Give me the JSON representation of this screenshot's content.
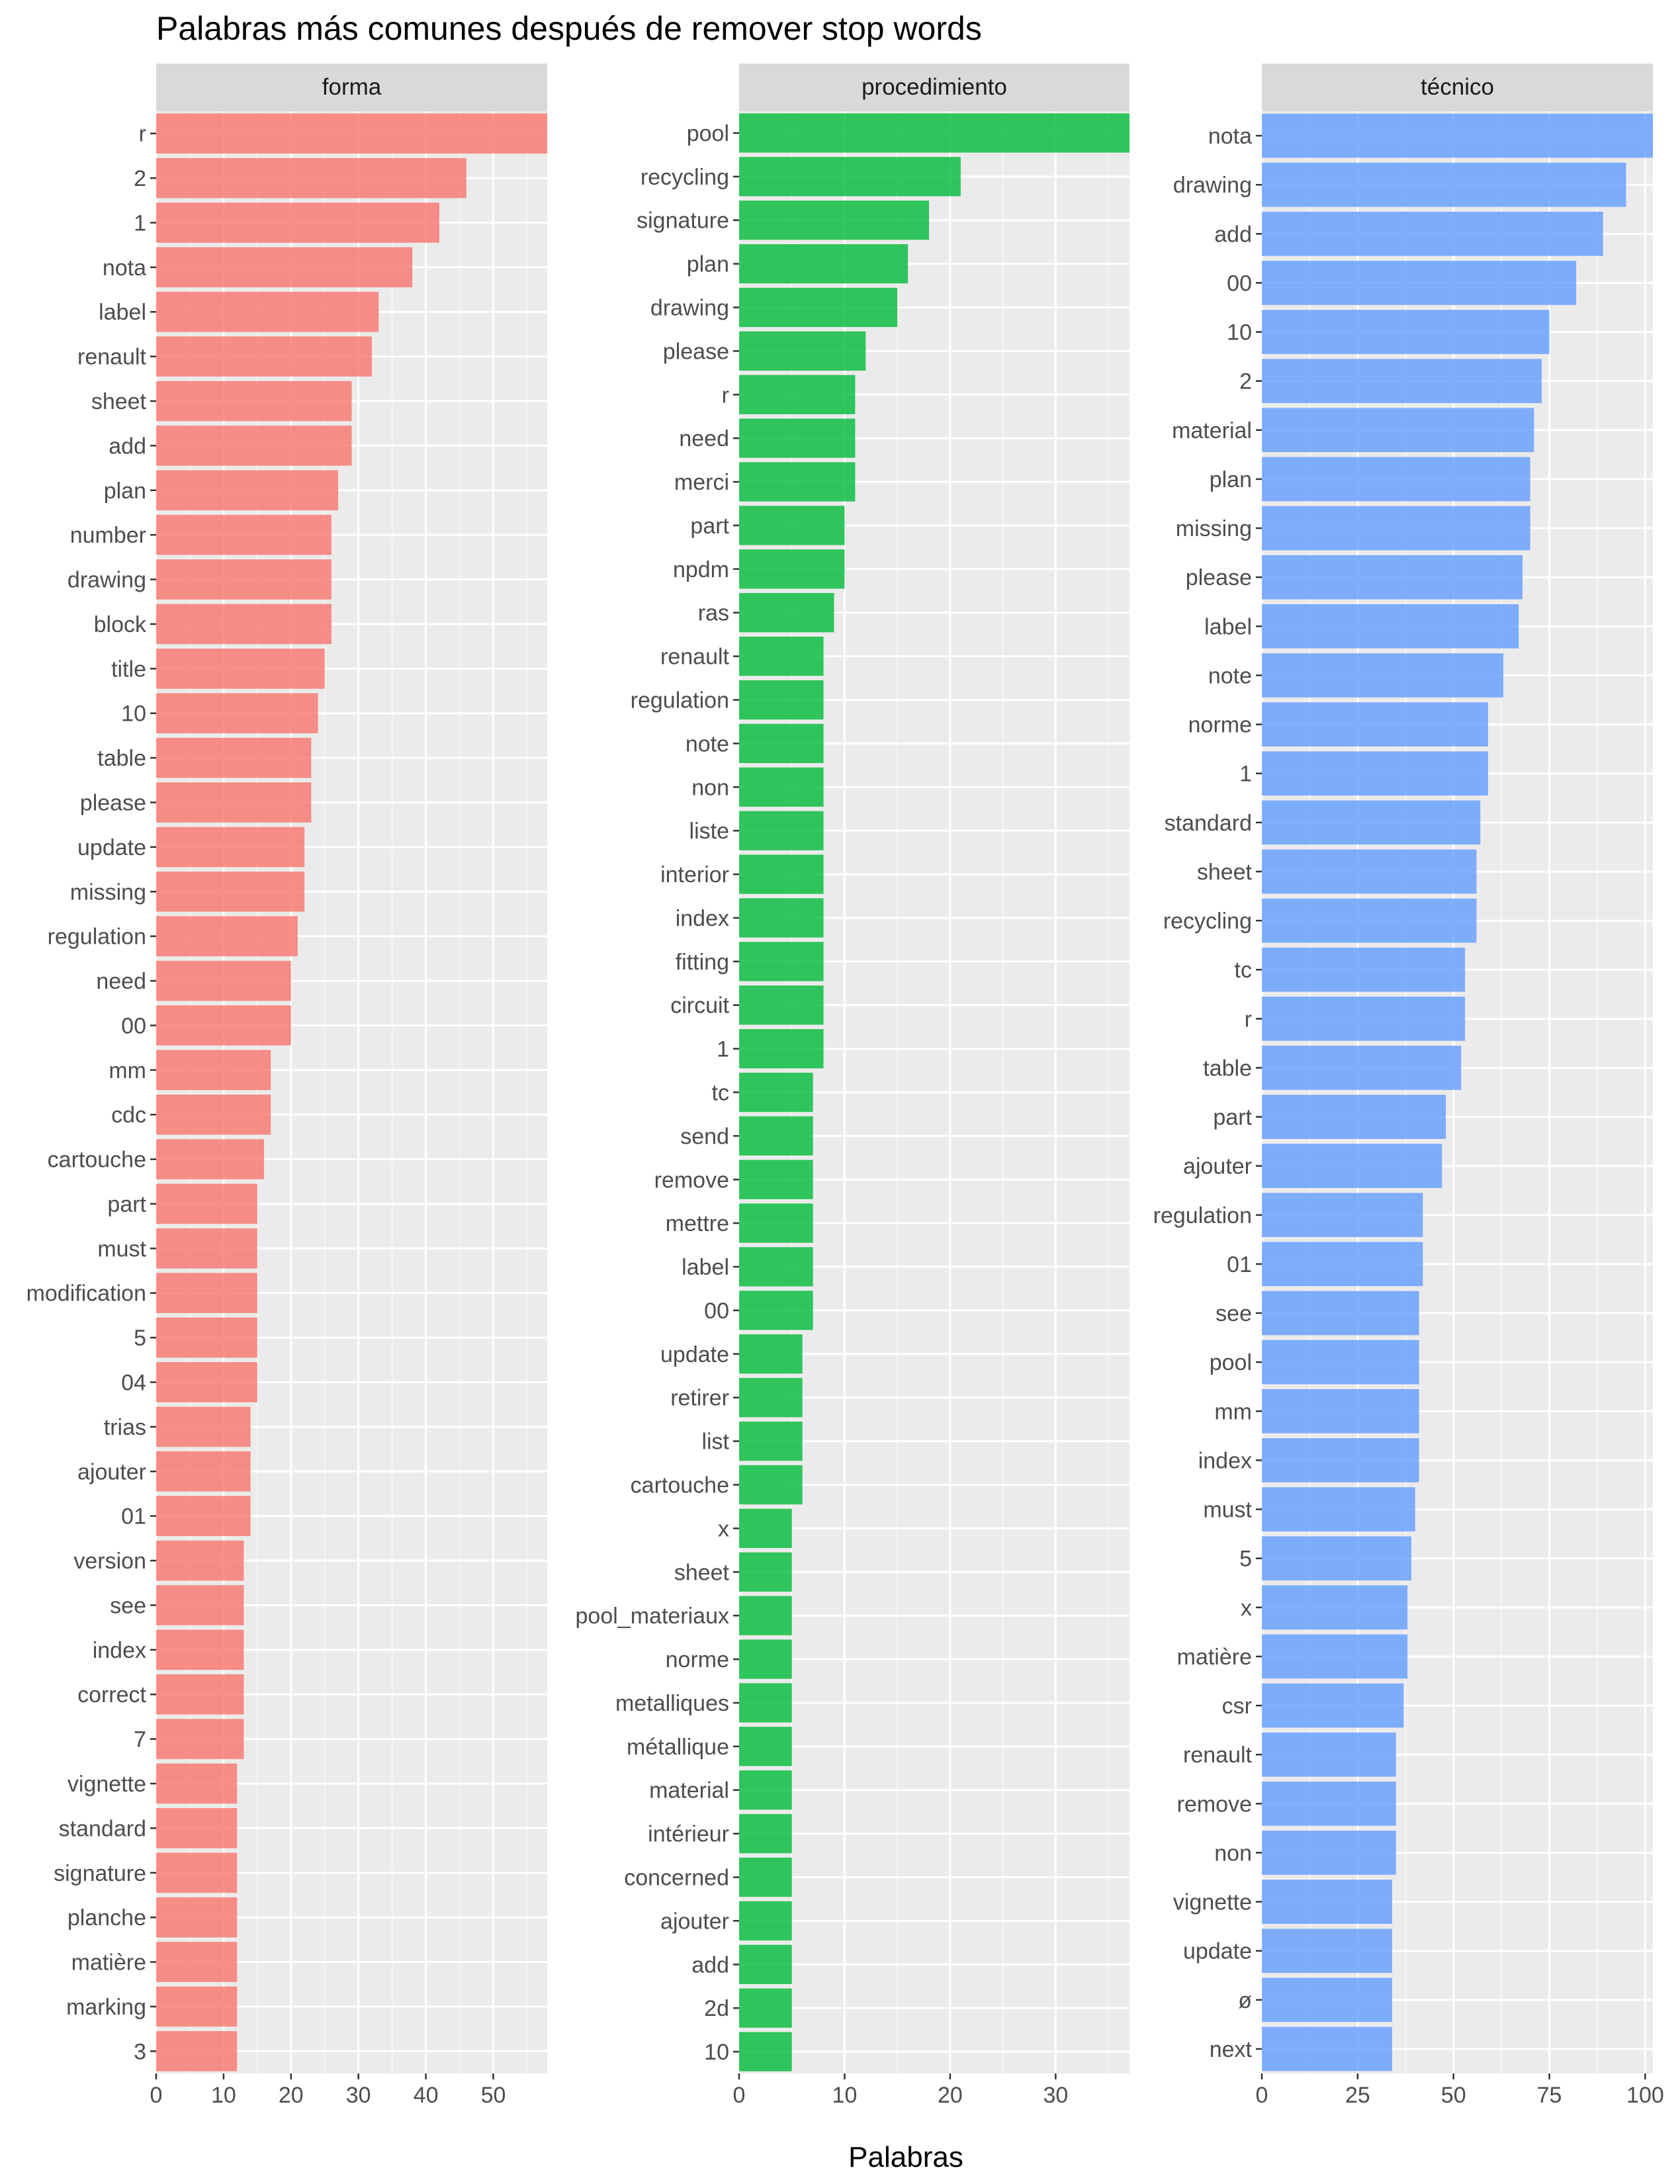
{
  "chart_data": {
    "type": "bar",
    "orientation": "horizontal",
    "title": "Palabras más comunes después de remover stop words",
    "xlabel": "Palabras",
    "ylabel": "",
    "grid": true,
    "legend": "none",
    "panels": [
      {
        "name": "forma",
        "color": "#F8766D",
        "xlim": [
          0,
          58
        ],
        "ticks": [
          0,
          10,
          20,
          30,
          40,
          50
        ],
        "categories": [
          "r",
          "2",
          "1",
          "nota",
          "label",
          "renault",
          "sheet",
          "add",
          "plan",
          "number",
          "drawing",
          "block",
          "title",
          "10",
          "table",
          "please",
          "update",
          "missing",
          "regulation",
          "need",
          "00",
          "mm",
          "cdc",
          "cartouche",
          "part",
          "must",
          "modification",
          "5",
          "04",
          "trias",
          "ajouter",
          "01",
          "version",
          "see",
          "index",
          "correct",
          "7",
          "vignette",
          "standard",
          "signature",
          "planche",
          "matière",
          "marking",
          "3"
        ],
        "values": [
          58,
          46,
          42,
          38,
          33,
          32,
          29,
          29,
          27,
          26,
          26,
          26,
          25,
          24,
          23,
          23,
          22,
          22,
          21,
          20,
          20,
          17,
          17,
          16,
          15,
          15,
          15,
          15,
          15,
          14,
          14,
          14,
          13,
          13,
          13,
          13,
          13,
          12,
          12,
          12,
          12,
          12,
          12,
          12
        ]
      },
      {
        "name": "procedimiento",
        "color": "#00BA38",
        "xlim": [
          0,
          37
        ],
        "ticks": [
          0,
          10,
          20,
          30
        ],
        "categories": [
          "pool",
          "recycling",
          "signature",
          "plan",
          "drawing",
          "please",
          "r",
          "need",
          "merci",
          "part",
          "npdm",
          "ras",
          "renault",
          "regulation",
          "note",
          "non",
          "liste",
          "interior",
          "index",
          "fitting",
          "circuit",
          "1",
          "tc",
          "send",
          "remove",
          "mettre",
          "label",
          "00",
          "update",
          "retirer",
          "list",
          "cartouche",
          "x",
          "sheet",
          "pool_materiaux",
          "norme",
          "metalliques",
          "métallique",
          "material",
          "intérieur",
          "concerned",
          "ajouter",
          "add",
          "2d",
          "10"
        ],
        "values": [
          37,
          21,
          18,
          16,
          15,
          12,
          11,
          11,
          11,
          10,
          10,
          9,
          8,
          8,
          8,
          8,
          8,
          8,
          8,
          8,
          8,
          8,
          7,
          7,
          7,
          7,
          7,
          7,
          6,
          6,
          6,
          6,
          5,
          5,
          5,
          5,
          5,
          5,
          5,
          5,
          5,
          5,
          5,
          5,
          5
        ]
      },
      {
        "name": "técnico",
        "color": "#619CFF",
        "xlim": [
          0,
          102
        ],
        "ticks": [
          0,
          25,
          50,
          75,
          100
        ],
        "categories": [
          "nota",
          "drawing",
          "add",
          "00",
          "10",
          "2",
          "material",
          "plan",
          "missing",
          "please",
          "label",
          "note",
          "norme",
          "1",
          "standard",
          "sheet",
          "recycling",
          "tc",
          "r",
          "table",
          "part",
          "ajouter",
          "regulation",
          "01",
          "see",
          "pool",
          "mm",
          "index",
          "must",
          "5",
          "x",
          "matière",
          "csr",
          "renault",
          "remove",
          "non",
          "vignette",
          "update",
          "ø",
          "next"
        ],
        "values": [
          102,
          95,
          89,
          82,
          75,
          73,
          71,
          70,
          70,
          68,
          67,
          63,
          59,
          59,
          57,
          56,
          56,
          53,
          53,
          52,
          48,
          47,
          42,
          42,
          41,
          41,
          41,
          41,
          40,
          39,
          38,
          38,
          37,
          35,
          35,
          35,
          34,
          34,
          34,
          34
        ]
      }
    ]
  }
}
